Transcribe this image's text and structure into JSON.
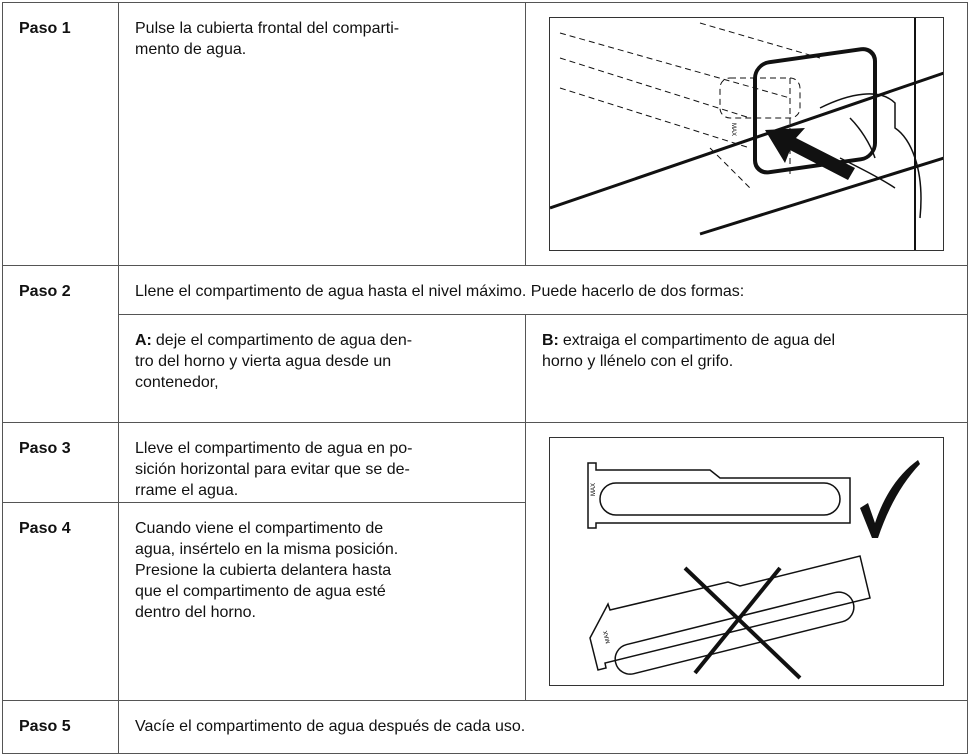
{
  "rows": [
    {
      "step": "Paso 1",
      "lines": [
        "Pulse la cubierta frontal del comparti-",
        "mento de agua."
      ]
    },
    {
      "step": "Paso 2",
      "lines": [
        "Llene el compartimento de agua hasta el nivel máximo. Puede hacerlo de dos formas:"
      ],
      "options": [
        {
          "label": "A:",
          "lines": [
            "deje el compartimento de agua den-",
            "tro del horno y vierta agua desde un",
            "contenedor,"
          ]
        },
        {
          "label": "B:",
          "lines": [
            "extraiga el compartimento de agua del",
            "horno y llénelo con el grifo."
          ]
        }
      ]
    },
    {
      "step": "Paso 3",
      "lines": [
        "Lleve el compartimento de agua en po-",
        "sición horizontal para evitar que se de-",
        "rrame el agua."
      ]
    },
    {
      "step": "Paso 4",
      "lines": [
        "Cuando viene el compartimento de",
        "agua, insértelo en la misma posición.",
        "Presione la cubierta delantera hasta",
        "que el compartimento de agua esté",
        "dentro del horno."
      ]
    },
    {
      "step": "Paso 5",
      "lines": [
        "Vacíe el compartimento de agua después de cada uso."
      ]
    }
  ],
  "figure_label": "MAX"
}
